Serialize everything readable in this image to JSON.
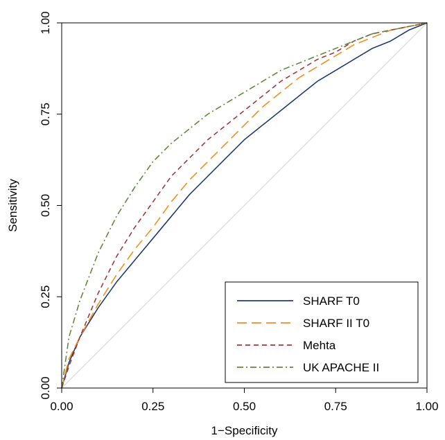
{
  "chart_data": {
    "type": "line",
    "xlabel": "1−Specificity",
    "ylabel": "Sensitivity",
    "xlim": [
      0,
      1
    ],
    "ylim": [
      0,
      1
    ],
    "x_ticks": [
      "0.00",
      "0.25",
      "0.50",
      "0.75",
      "1.00"
    ],
    "y_ticks": [
      "0.00",
      "0.25",
      "0.50",
      "0.75",
      "1.00"
    ],
    "grid": false,
    "legend_position": "bottom-right",
    "reference_line": [
      [
        0,
        0
      ],
      [
        1,
        1
      ]
    ],
    "series": [
      {
        "name": "SHARF T0",
        "color": "#1f3c6e",
        "dash": "solid",
        "x": [
          0,
          0.02,
          0.05,
          0.1,
          0.15,
          0.2,
          0.25,
          0.3,
          0.35,
          0.4,
          0.45,
          0.5,
          0.55,
          0.6,
          0.65,
          0.7,
          0.75,
          0.8,
          0.85,
          0.9,
          0.95,
          1.0
        ],
        "y": [
          0,
          0.07,
          0.14,
          0.22,
          0.29,
          0.35,
          0.41,
          0.47,
          0.53,
          0.58,
          0.63,
          0.68,
          0.72,
          0.76,
          0.8,
          0.84,
          0.87,
          0.9,
          0.93,
          0.95,
          0.98,
          1.0
        ]
      },
      {
        "name": "SHARF II T0",
        "color": "#f28e1e",
        "dash": "long-dash",
        "x": [
          0,
          0.02,
          0.05,
          0.1,
          0.15,
          0.2,
          0.25,
          0.3,
          0.35,
          0.4,
          0.45,
          0.5,
          0.55,
          0.6,
          0.65,
          0.7,
          0.75,
          0.8,
          0.85,
          0.9,
          0.95,
          1.0
        ],
        "y": [
          0,
          0.08,
          0.14,
          0.23,
          0.31,
          0.38,
          0.44,
          0.51,
          0.57,
          0.62,
          0.67,
          0.72,
          0.77,
          0.81,
          0.85,
          0.88,
          0.91,
          0.94,
          0.96,
          0.98,
          0.99,
          1.0
        ]
      },
      {
        "name": "Mehta",
        "color": "#9e3a3a",
        "dash": "dash",
        "x": [
          0,
          0.02,
          0.05,
          0.1,
          0.15,
          0.2,
          0.25,
          0.3,
          0.35,
          0.4,
          0.45,
          0.5,
          0.55,
          0.6,
          0.65,
          0.7,
          0.75,
          0.8,
          0.85,
          0.9,
          0.95,
          1.0
        ],
        "y": [
          0,
          0.06,
          0.14,
          0.26,
          0.36,
          0.44,
          0.51,
          0.58,
          0.63,
          0.68,
          0.72,
          0.76,
          0.8,
          0.84,
          0.87,
          0.9,
          0.92,
          0.95,
          0.97,
          0.98,
          0.99,
          1.0
        ]
      },
      {
        "name": "UK APACHE II",
        "color": "#5f8a3a",
        "dash": "dash-dot",
        "x": [
          0,
          0.02,
          0.05,
          0.1,
          0.15,
          0.2,
          0.25,
          0.3,
          0.35,
          0.4,
          0.45,
          0.5,
          0.55,
          0.6,
          0.65,
          0.7,
          0.75,
          0.8,
          0.85,
          0.9,
          0.95,
          1.0
        ],
        "y": [
          0,
          0.14,
          0.24,
          0.37,
          0.47,
          0.55,
          0.62,
          0.67,
          0.71,
          0.75,
          0.78,
          0.81,
          0.84,
          0.87,
          0.89,
          0.91,
          0.93,
          0.95,
          0.97,
          0.98,
          0.99,
          1.0
        ]
      }
    ]
  }
}
